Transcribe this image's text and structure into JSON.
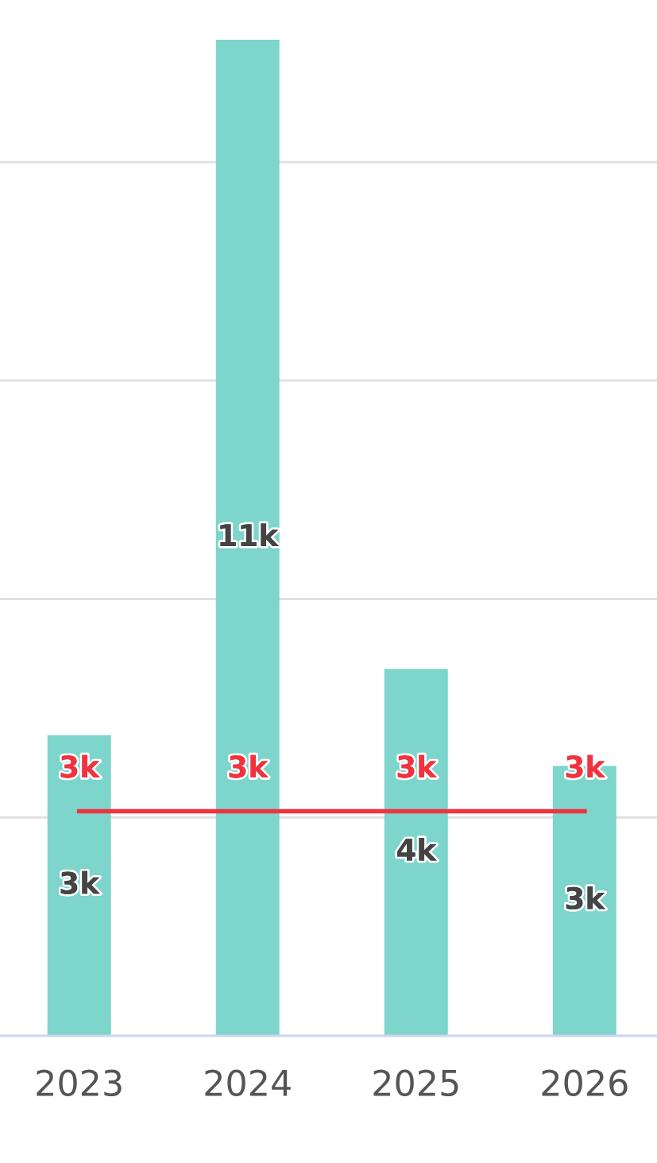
{
  "chart_data": {
    "type": "bar",
    "categories": [
      "2023",
      "2024",
      "2025",
      "2026"
    ],
    "grid": "y",
    "legend": false,
    "yticks": [
      {
        "value": 2500,
        "label": null
      },
      {
        "value": 5000,
        "label": null
      },
      {
        "value": 7500,
        "label": null
      },
      {
        "value": 10000,
        "label": null
      }
    ],
    "tick_labels": "x",
    "series": [
      {
        "color": "#7dd5cc",
        "values": [
          3440,
          11400,
          4200,
          3090
        ],
        "value_labels": [
          "3k",
          "11k",
          "4k",
          "3k"
        ]
      },
      {
        "type": "line",
        "color": "#f0333f",
        "marker": "none",
        "line_style": "solid",
        "values": [
          2570,
          2570,
          2570,
          2570
        ],
        "value_labels": [
          "3k",
          "3k",
          "3k",
          "3k"
        ]
      }
    ]
  }
}
